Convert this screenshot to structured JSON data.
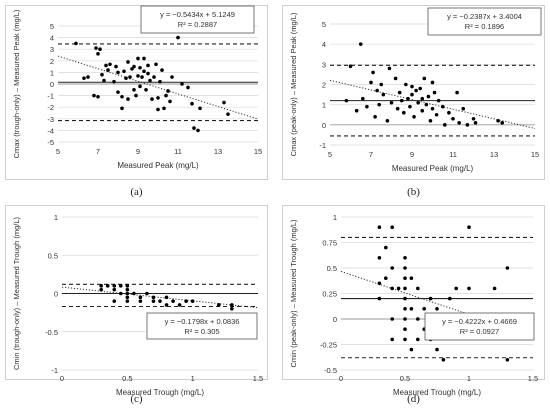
{
  "chart_data": [
    {
      "type": "scatter",
      "panel_label": "(a)",
      "xlabel": "Measured Peak (mg/L)",
      "ylabel": "Cmax (trough-only) – Measured Peak (mg/L)",
      "xlim": [
        5,
        15
      ],
      "ylim": [
        -5,
        5
      ],
      "xticks": [
        5,
        7,
        9,
        11,
        13,
        15
      ],
      "yticks": [
        -5,
        -4,
        -3,
        -2,
        -1,
        0,
        1,
        2,
        3,
        4,
        5
      ],
      "xtick_labels": [
        "5",
        "7",
        "9",
        "11",
        "13",
        "15"
      ],
      "ytick_labels": [
        "-5",
        "-4",
        "-3",
        "-2",
        "-1",
        "0",
        "1",
        "2",
        "3",
        "4",
        "5"
      ],
      "mean_line": 0.15,
      "loa_lines": [
        3.45,
        -3.15
      ],
      "trend": {
        "slope": -0.5434,
        "intercept": 5.1249
      },
      "equation": "y = −0.5434x + 5.1249",
      "r2": "R² = 0.2887",
      "points": [
        [
          5.9,
          3.5
        ],
        [
          6.3,
          0.5
        ],
        [
          6.5,
          0.6
        ],
        [
          6.8,
          -1.0
        ],
        [
          6.9,
          3.1
        ],
        [
          7.0,
          -1.1
        ],
        [
          7.0,
          2.6
        ],
        [
          7.1,
          3.0
        ],
        [
          7.2,
          0.8
        ],
        [
          7.3,
          0.3
        ],
        [
          7.4,
          1.6
        ],
        [
          7.5,
          1.2
        ],
        [
          7.6,
          1.7
        ],
        [
          7.8,
          0.2
        ],
        [
          7.9,
          1.5
        ],
        [
          8.0,
          -0.7
        ],
        [
          8.0,
          1.0
        ],
        [
          8.2,
          -1.1
        ],
        [
          8.2,
          -2.1
        ],
        [
          8.3,
          1.1
        ],
        [
          8.4,
          0.5
        ],
        [
          8.5,
          1.9
        ],
        [
          8.5,
          -1.3
        ],
        [
          8.6,
          0.6
        ],
        [
          8.7,
          1.3
        ],
        [
          8.8,
          1.5
        ],
        [
          8.8,
          -0.5
        ],
        [
          8.9,
          -1.0
        ],
        [
          9.0,
          0.7
        ],
        [
          9.0,
          2.2
        ],
        [
          9.1,
          1.4
        ],
        [
          9.1,
          -0.2
        ],
        [
          9.2,
          0.6
        ],
        [
          9.3,
          1.1
        ],
        [
          9.3,
          2.2
        ],
        [
          9.4,
          -0.5
        ],
        [
          9.5,
          0.9
        ],
        [
          9.5,
          1.6
        ],
        [
          9.6,
          0.3
        ],
        [
          9.7,
          -1.3
        ],
        [
          9.8,
          0.6
        ],
        [
          9.9,
          1.7
        ],
        [
          10.0,
          -2.2
        ],
        [
          10.0,
          -1.2
        ],
        [
          10.1,
          0.2
        ],
        [
          10.2,
          1.2
        ],
        [
          10.3,
          -2.1
        ],
        [
          10.4,
          -1.0
        ],
        [
          10.5,
          -0.6
        ],
        [
          10.6,
          -1.5
        ],
        [
          10.7,
          0.6
        ],
        [
          11.0,
          4.0
        ],
        [
          11.2,
          0.0
        ],
        [
          11.5,
          -0.3
        ],
        [
          11.7,
          -1.7
        ],
        [
          11.8,
          -3.8
        ],
        [
          12.0,
          -4.0
        ],
        [
          12.1,
          -2.1
        ],
        [
          13.3,
          -1.6
        ],
        [
          13.5,
          -2.6
        ]
      ]
    },
    {
      "type": "scatter",
      "panel_label": "(b)",
      "xlabel": "Measured Peak (mg/L)",
      "ylabel": "Cmax (peak-only) – Measured Peak (mg/L)",
      "xlim": [
        5,
        15
      ],
      "ylim": [
        -1,
        5
      ],
      "xticks": [
        5,
        7,
        9,
        11,
        13,
        15
      ],
      "yticks": [
        -1,
        0,
        1,
        2,
        3,
        4,
        5
      ],
      "xtick_labels": [
        "5",
        "7",
        "9",
        "11",
        "13",
        "15"
      ],
      "ytick_labels": [
        "-1",
        "0",
        "1",
        "2",
        "3",
        "4",
        "5"
      ],
      "mean_line": 1.2,
      "loa_lines": [
        2.95,
        -0.55
      ],
      "trend": {
        "slope": -0.2387,
        "intercept": 3.4004
      },
      "equation": "y = −0.2387x + 3.4004",
      "r2": "R² = 0.1896",
      "points": [
        [
          5.8,
          1.2
        ],
        [
          6.0,
          2.9
        ],
        [
          6.3,
          0.7
        ],
        [
          6.5,
          4.0
        ],
        [
          6.6,
          1.3
        ],
        [
          6.8,
          0.9
        ],
        [
          7.0,
          2.1
        ],
        [
          7.1,
          2.6
        ],
        [
          7.2,
          0.4
        ],
        [
          7.3,
          1.7
        ],
        [
          7.4,
          1.0
        ],
        [
          7.5,
          2.0
        ],
        [
          7.6,
          1.5
        ],
        [
          7.8,
          0.2
        ],
        [
          7.9,
          2.8
        ],
        [
          8.0,
          1.1
        ],
        [
          8.2,
          2.3
        ],
        [
          8.3,
          0.8
        ],
        [
          8.4,
          1.6
        ],
        [
          8.5,
          1.2
        ],
        [
          8.6,
          0.6
        ],
        [
          8.7,
          2.0
        ],
        [
          8.8,
          1.3
        ],
        [
          8.9,
          0.9
        ],
        [
          9.0,
          1.9
        ],
        [
          9.0,
          1.5
        ],
        [
          9.1,
          0.4
        ],
        [
          9.2,
          1.7
        ],
        [
          9.3,
          1.1
        ],
        [
          9.4,
          1.8
        ],
        [
          9.5,
          0.7
        ],
        [
          9.5,
          1.3
        ],
        [
          9.6,
          2.3
        ],
        [
          9.7,
          1.0
        ],
        [
          9.8,
          1.4
        ],
        [
          9.9,
          0.2
        ],
        [
          10.0,
          2.1
        ],
        [
          10.0,
          0.8
        ],
        [
          10.1,
          1.6
        ],
        [
          10.2,
          0.5
        ],
        [
          10.3,
          1.2
        ],
        [
          10.5,
          0.9
        ],
        [
          10.6,
          0.0
        ],
        [
          10.8,
          0.6
        ],
        [
          11.0,
          0.3
        ],
        [
          11.2,
          1.6
        ],
        [
          11.3,
          0.1
        ],
        [
          11.5,
          0.8
        ],
        [
          11.7,
          0.0
        ],
        [
          12.0,
          0.3
        ],
        [
          12.1,
          0.1
        ],
        [
          13.2,
          0.2
        ],
        [
          13.4,
          0.1
        ]
      ]
    },
    {
      "type": "scatter",
      "panel_label": "(c)",
      "xlabel": "Measured Trough (mg/L)",
      "ylabel": "Cmin (trough-only) – Measured Trough (mg/L)",
      "xlim": [
        0,
        1.5
      ],
      "ylim": [
        -1,
        1
      ],
      "xticks": [
        0,
        0.5,
        1,
        1.5
      ],
      "yticks": [
        -1,
        -0.5,
        0,
        0.5,
        1
      ],
      "xtick_labels": [
        "0",
        "0.5",
        "1",
        "1.5"
      ],
      "ytick_labels": [
        "-1",
        "-0.5",
        "0",
        "0.5",
        "1"
      ],
      "mean_line": 0.0,
      "loa_lines": [
        0.12,
        -0.17
      ],
      "trend": {
        "slope": -0.1798,
        "intercept": 0.0836
      },
      "equation": "y = −0.1798x + 0.0836",
      "r2": "R² = 0.305",
      "points": [
        [
          0.3,
          0.1
        ],
        [
          0.3,
          0.05
        ],
        [
          0.35,
          0.1
        ],
        [
          0.4,
          0.1
        ],
        [
          0.4,
          0.05
        ],
        [
          0.4,
          -0.1
        ],
        [
          0.45,
          0.1
        ],
        [
          0.45,
          0.0
        ],
        [
          0.5,
          0.1
        ],
        [
          0.5,
          0.05
        ],
        [
          0.5,
          0.0
        ],
        [
          0.5,
          -0.05
        ],
        [
          0.5,
          -0.1
        ],
        [
          0.55,
          0.0
        ],
        [
          0.6,
          -0.05
        ],
        [
          0.6,
          -0.1
        ],
        [
          0.65,
          0.0
        ],
        [
          0.7,
          -0.05
        ],
        [
          0.7,
          -0.1
        ],
        [
          0.75,
          -0.1
        ],
        [
          0.8,
          -0.15
        ],
        [
          0.8,
          -0.05
        ],
        [
          0.85,
          -0.1
        ],
        [
          0.9,
          -0.15
        ],
        [
          0.95,
          -0.1
        ],
        [
          1.0,
          -0.1
        ],
        [
          1.2,
          -0.15
        ],
        [
          1.3,
          -0.15
        ],
        [
          1.3,
          -0.2
        ]
      ]
    },
    {
      "type": "scatter",
      "panel_label": "(d)",
      "xlabel": "Measured Trough (mg/L)",
      "ylabel": "Cmin (peak-only) – Measured Trough (mg/L)",
      "xlim": [
        0,
        1.5
      ],
      "ylim": [
        -0.5,
        1
      ],
      "xticks": [
        0,
        0.5,
        1,
        1.5
      ],
      "yticks": [
        -0.5,
        -0.25,
        0,
        0.25,
        0.5,
        0.75,
        1
      ],
      "xtick_labels": [
        "0",
        "0.5",
        "1",
        "1.5"
      ],
      "ytick_labels": [
        "-0.5",
        "-0.25",
        "0",
        "0.25",
        "0.5",
        "0.75",
        "1"
      ],
      "mean_line": 0.2,
      "loa_lines": [
        0.8,
        -0.38
      ],
      "trend": {
        "slope": -0.4222,
        "intercept": 0.4669
      },
      "equation": "y = −0.4222x + 0.4669",
      "r2": "R² = 0.0927",
      "points": [
        [
          0.3,
          0.9
        ],
        [
          0.3,
          0.6
        ],
        [
          0.3,
          0.35
        ],
        [
          0.3,
          0.2
        ],
        [
          0.35,
          0.7
        ],
        [
          0.35,
          0.4
        ],
        [
          0.4,
          0.9
        ],
        [
          0.4,
          0.5
        ],
        [
          0.4,
          0.3
        ],
        [
          0.4,
          0.0
        ],
        [
          0.4,
          -0.2
        ],
        [
          0.45,
          0.3
        ],
        [
          0.5,
          0.6
        ],
        [
          0.5,
          0.5
        ],
        [
          0.5,
          0.4
        ],
        [
          0.5,
          0.3
        ],
        [
          0.5,
          0.2
        ],
        [
          0.5,
          0.1
        ],
        [
          0.5,
          0.0
        ],
        [
          0.5,
          -0.1
        ],
        [
          0.5,
          -0.2
        ],
        [
          0.55,
          0.4
        ],
        [
          0.55,
          0.1
        ],
        [
          0.55,
          -0.3
        ],
        [
          0.6,
          0.3
        ],
        [
          0.6,
          0.0
        ],
        [
          0.6,
          -0.2
        ],
        [
          0.65,
          0.1
        ],
        [
          0.65,
          -0.1
        ],
        [
          0.7,
          0.2
        ],
        [
          0.7,
          0.0
        ],
        [
          0.7,
          -0.2
        ],
        [
          0.75,
          0.1
        ],
        [
          0.75,
          -0.3
        ],
        [
          0.8,
          0.0
        ],
        [
          0.8,
          -0.4
        ],
        [
          0.85,
          0.2
        ],
        [
          0.9,
          0.3
        ],
        [
          0.9,
          0.0
        ],
        [
          0.95,
          -0.1
        ],
        [
          1.0,
          0.9
        ],
        [
          1.0,
          0.3
        ],
        [
          1.2,
          0.3
        ],
        [
          1.3,
          0.5
        ],
        [
          1.3,
          -0.4
        ]
      ]
    }
  ]
}
